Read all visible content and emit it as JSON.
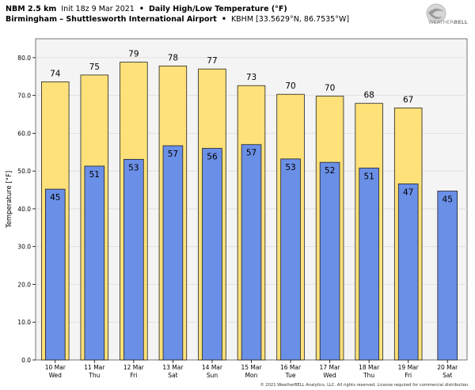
{
  "header": {
    "line1": {
      "model": "NBM 2.5 km",
      "init": "Init 18z 9 Mar 2021",
      "bullet": "•",
      "product": "Daily High/Low Temperature (°F)"
    },
    "line2": {
      "station": "Birmingham – Shuttlesworth International Airport",
      "bullet": "•",
      "coords": "KBHM [33.5629°N, 86.7535°W]"
    }
  },
  "logo": {
    "line1": "WEATHER",
    "line2": "BELL"
  },
  "copyright": "© 2021 WeatherBELL Analytics, LLC. All rights reserved. License required for commercial distribution.",
  "colors": {
    "high_bar": "#ffe17a",
    "low_bar": "#6a8fe6",
    "plot_bg": "#f4f4f4",
    "grid": "#dcdcdc"
  },
  "chart_data": {
    "type": "bar",
    "ylabel": "Temperature [°F]",
    "ylim": [
      0,
      85
    ],
    "yticks": [
      0,
      10,
      20,
      30,
      40,
      50,
      60,
      70,
      80
    ],
    "ytick_labels": [
      "0.0",
      "10.0",
      "20.0",
      "30.0",
      "40.0",
      "50.0",
      "60.0",
      "70.0",
      "80.0"
    ],
    "grid": true,
    "categories": [
      {
        "date": "10 Mar",
        "day": "Wed"
      },
      {
        "date": "11 Mar",
        "day": "Thu"
      },
      {
        "date": "12 Mar",
        "day": "Fri"
      },
      {
        "date": "13 Mar",
        "day": "Sat"
      },
      {
        "date": "14 Mar",
        "day": "Sun"
      },
      {
        "date": "15 Mar",
        "day": "Mon"
      },
      {
        "date": "16 Mar",
        "day": "Tue"
      },
      {
        "date": "17 Mar",
        "day": "Wed"
      },
      {
        "date": "18 Mar",
        "day": "Thu"
      },
      {
        "date": "19 Mar",
        "day": "Fri"
      },
      {
        "date": "20 Mar",
        "day": "Sat"
      }
    ],
    "highs": [
      73.6,
      75.4,
      78.8,
      77.8,
      77.0,
      72.6,
      70.3,
      69.8,
      67.9,
      66.7,
      null
    ],
    "high_labels": [
      "74",
      "75",
      "79",
      "78",
      "77",
      "73",
      "70",
      "70",
      "68",
      "67",
      ""
    ],
    "lows": [
      45.2,
      51.3,
      53.1,
      56.7,
      56.0,
      57.0,
      53.2,
      52.3,
      50.8,
      46.6,
      44.7
    ],
    "low_labels": [
      "45",
      "51",
      "53",
      "57",
      "56",
      "57",
      "53",
      "52",
      "51",
      "47",
      "45"
    ]
  }
}
